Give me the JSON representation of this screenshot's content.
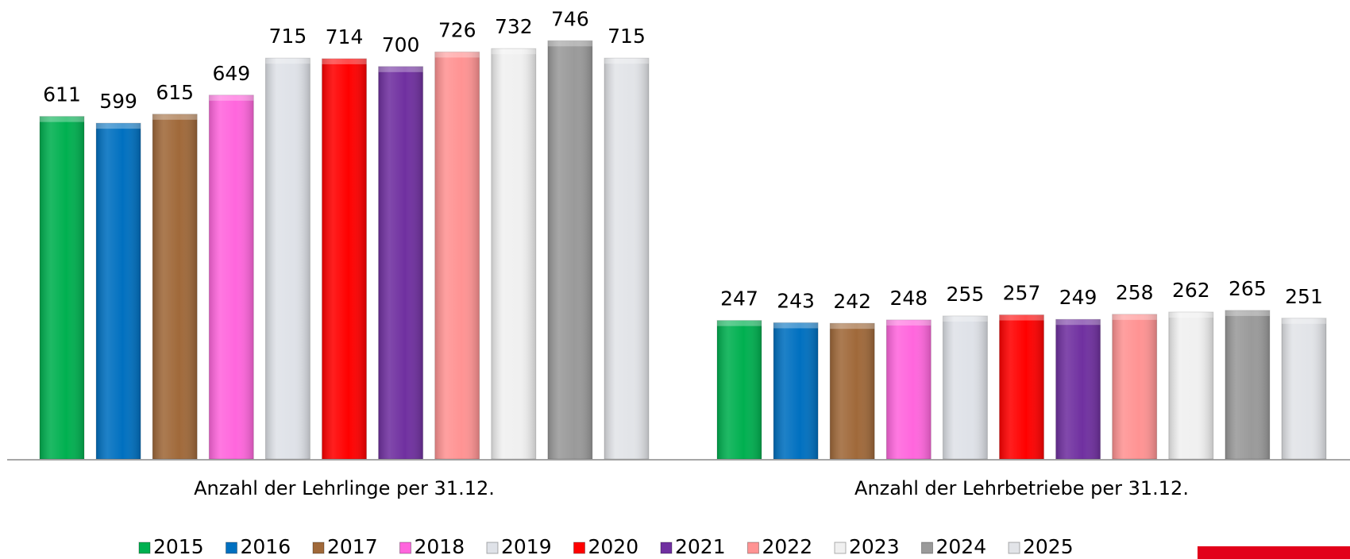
{
  "chart_data": {
    "type": "bar",
    "categories": [
      "Anzahl der Lehrlinge per 31.12.",
      "Anzahl der Lehrbetriebe per 31.12."
    ],
    "series": [
      {
        "name": "2015",
        "color": "#00b050",
        "values": [
          611,
          247
        ]
      },
      {
        "name": "2016",
        "color": "#0070c0",
        "values": [
          599,
          243
        ]
      },
      {
        "name": "2017",
        "color": "#a0693a",
        "values": [
          615,
          242
        ]
      },
      {
        "name": "2018",
        "color": "#ff66dd",
        "values": [
          649,
          248
        ]
      },
      {
        "name": "2019",
        "color": "#dfe2e8",
        "values": [
          715,
          255
        ]
      },
      {
        "name": "2020",
        "color": "#ff0000",
        "values": [
          714,
          257
        ]
      },
      {
        "name": "2021",
        "color": "#7030a0",
        "values": [
          700,
          249
        ]
      },
      {
        "name": "2022",
        "color": "#ff9393",
        "values": [
          726,
          258
        ]
      },
      {
        "name": "2023",
        "color": "#f0f0f0",
        "values": [
          732,
          262
        ]
      },
      {
        "name": "2024",
        "color": "#9a9a9a",
        "values": [
          746,
          265
        ]
      },
      {
        "name": "2025",
        "color": "#e2e4e8",
        "values": [
          715,
          251
        ]
      }
    ],
    "legend": "bottom"
  }
}
